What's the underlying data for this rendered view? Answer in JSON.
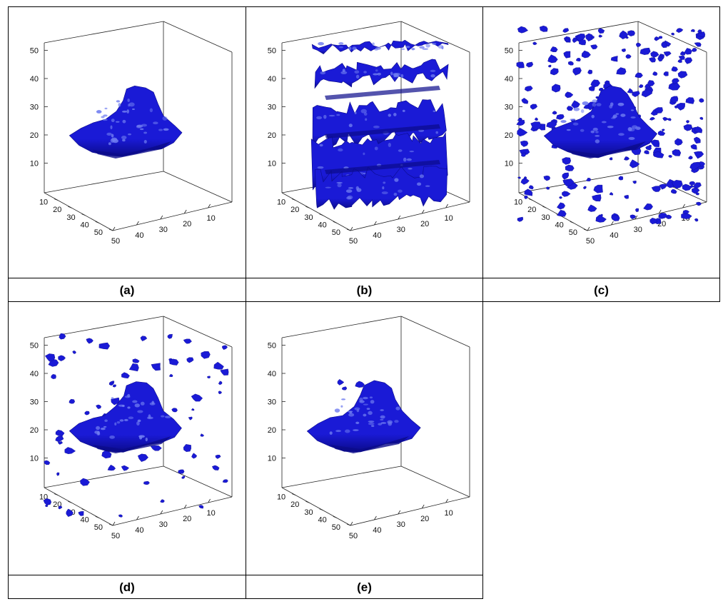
{
  "chart_data": [
    {
      "type": "scatter",
      "panel_label": "(a)",
      "axes": {
        "x": [
          0,
          50
        ],
        "y": [
          0,
          50
        ],
        "z": [
          0,
          50
        ]
      },
      "x_ticks": [
        "10",
        "20",
        "30",
        "40",
        "50"
      ],
      "y_ticks": [
        "50",
        "40",
        "30",
        "20",
        "10"
      ],
      "z_ticks": [
        "10",
        "20",
        "30",
        "40",
        "50"
      ],
      "surface": "tumor",
      "noise_level": 0
    },
    {
      "type": "scatter",
      "panel_label": "(b)",
      "axes": {
        "x": [
          0,
          50
        ],
        "y": [
          0,
          50
        ],
        "z": [
          0,
          50
        ]
      },
      "x_ticks": [
        "10",
        "20",
        "30",
        "40",
        "50"
      ],
      "y_ticks": [
        "50",
        "40",
        "30",
        "20",
        "10"
      ],
      "z_ticks": [
        "10",
        "20",
        "30",
        "40",
        "50"
      ],
      "surface": "layers",
      "noise_level": 0
    },
    {
      "type": "scatter",
      "panel_label": "(c)",
      "axes": {
        "x": [
          0,
          50
        ],
        "y": [
          0,
          50
        ],
        "z": [
          0,
          50
        ]
      },
      "x_ticks": [
        "10",
        "20",
        "30",
        "40",
        "50"
      ],
      "y_ticks": [
        "50",
        "40",
        "30",
        "20",
        "10"
      ],
      "z_ticks": [
        "10",
        "20",
        "30",
        "40",
        "50"
      ],
      "surface": "tumor",
      "noise_level": 3
    },
    {
      "type": "scatter",
      "panel_label": "(d)",
      "axes": {
        "x": [
          0,
          50
        ],
        "y": [
          0,
          50
        ],
        "z": [
          0,
          50
        ]
      },
      "x_ticks": [
        "10",
        "20",
        "30",
        "40",
        "50"
      ],
      "y_ticks": [
        "50",
        "40",
        "30",
        "20",
        "10"
      ],
      "z_ticks": [
        "10",
        "20",
        "30",
        "40",
        "50"
      ],
      "surface": "tumor",
      "noise_level": 1
    },
    {
      "type": "scatter",
      "panel_label": "(e)",
      "axes": {
        "x": [
          0,
          50
        ],
        "y": [
          0,
          50
        ],
        "z": [
          0,
          50
        ]
      },
      "x_ticks": [
        "10",
        "20",
        "30",
        "40",
        "50"
      ],
      "y_ticks": [
        "50",
        "40",
        "30",
        "20",
        "10"
      ],
      "z_ticks": [
        "10",
        "20",
        "30",
        "40",
        "50"
      ],
      "surface": "tumor",
      "noise_level": 0
    }
  ],
  "colors": {
    "surface": "#1a1ad6",
    "surface_dark": "#0b0b8a",
    "surface_light": "#6f7cf0"
  }
}
